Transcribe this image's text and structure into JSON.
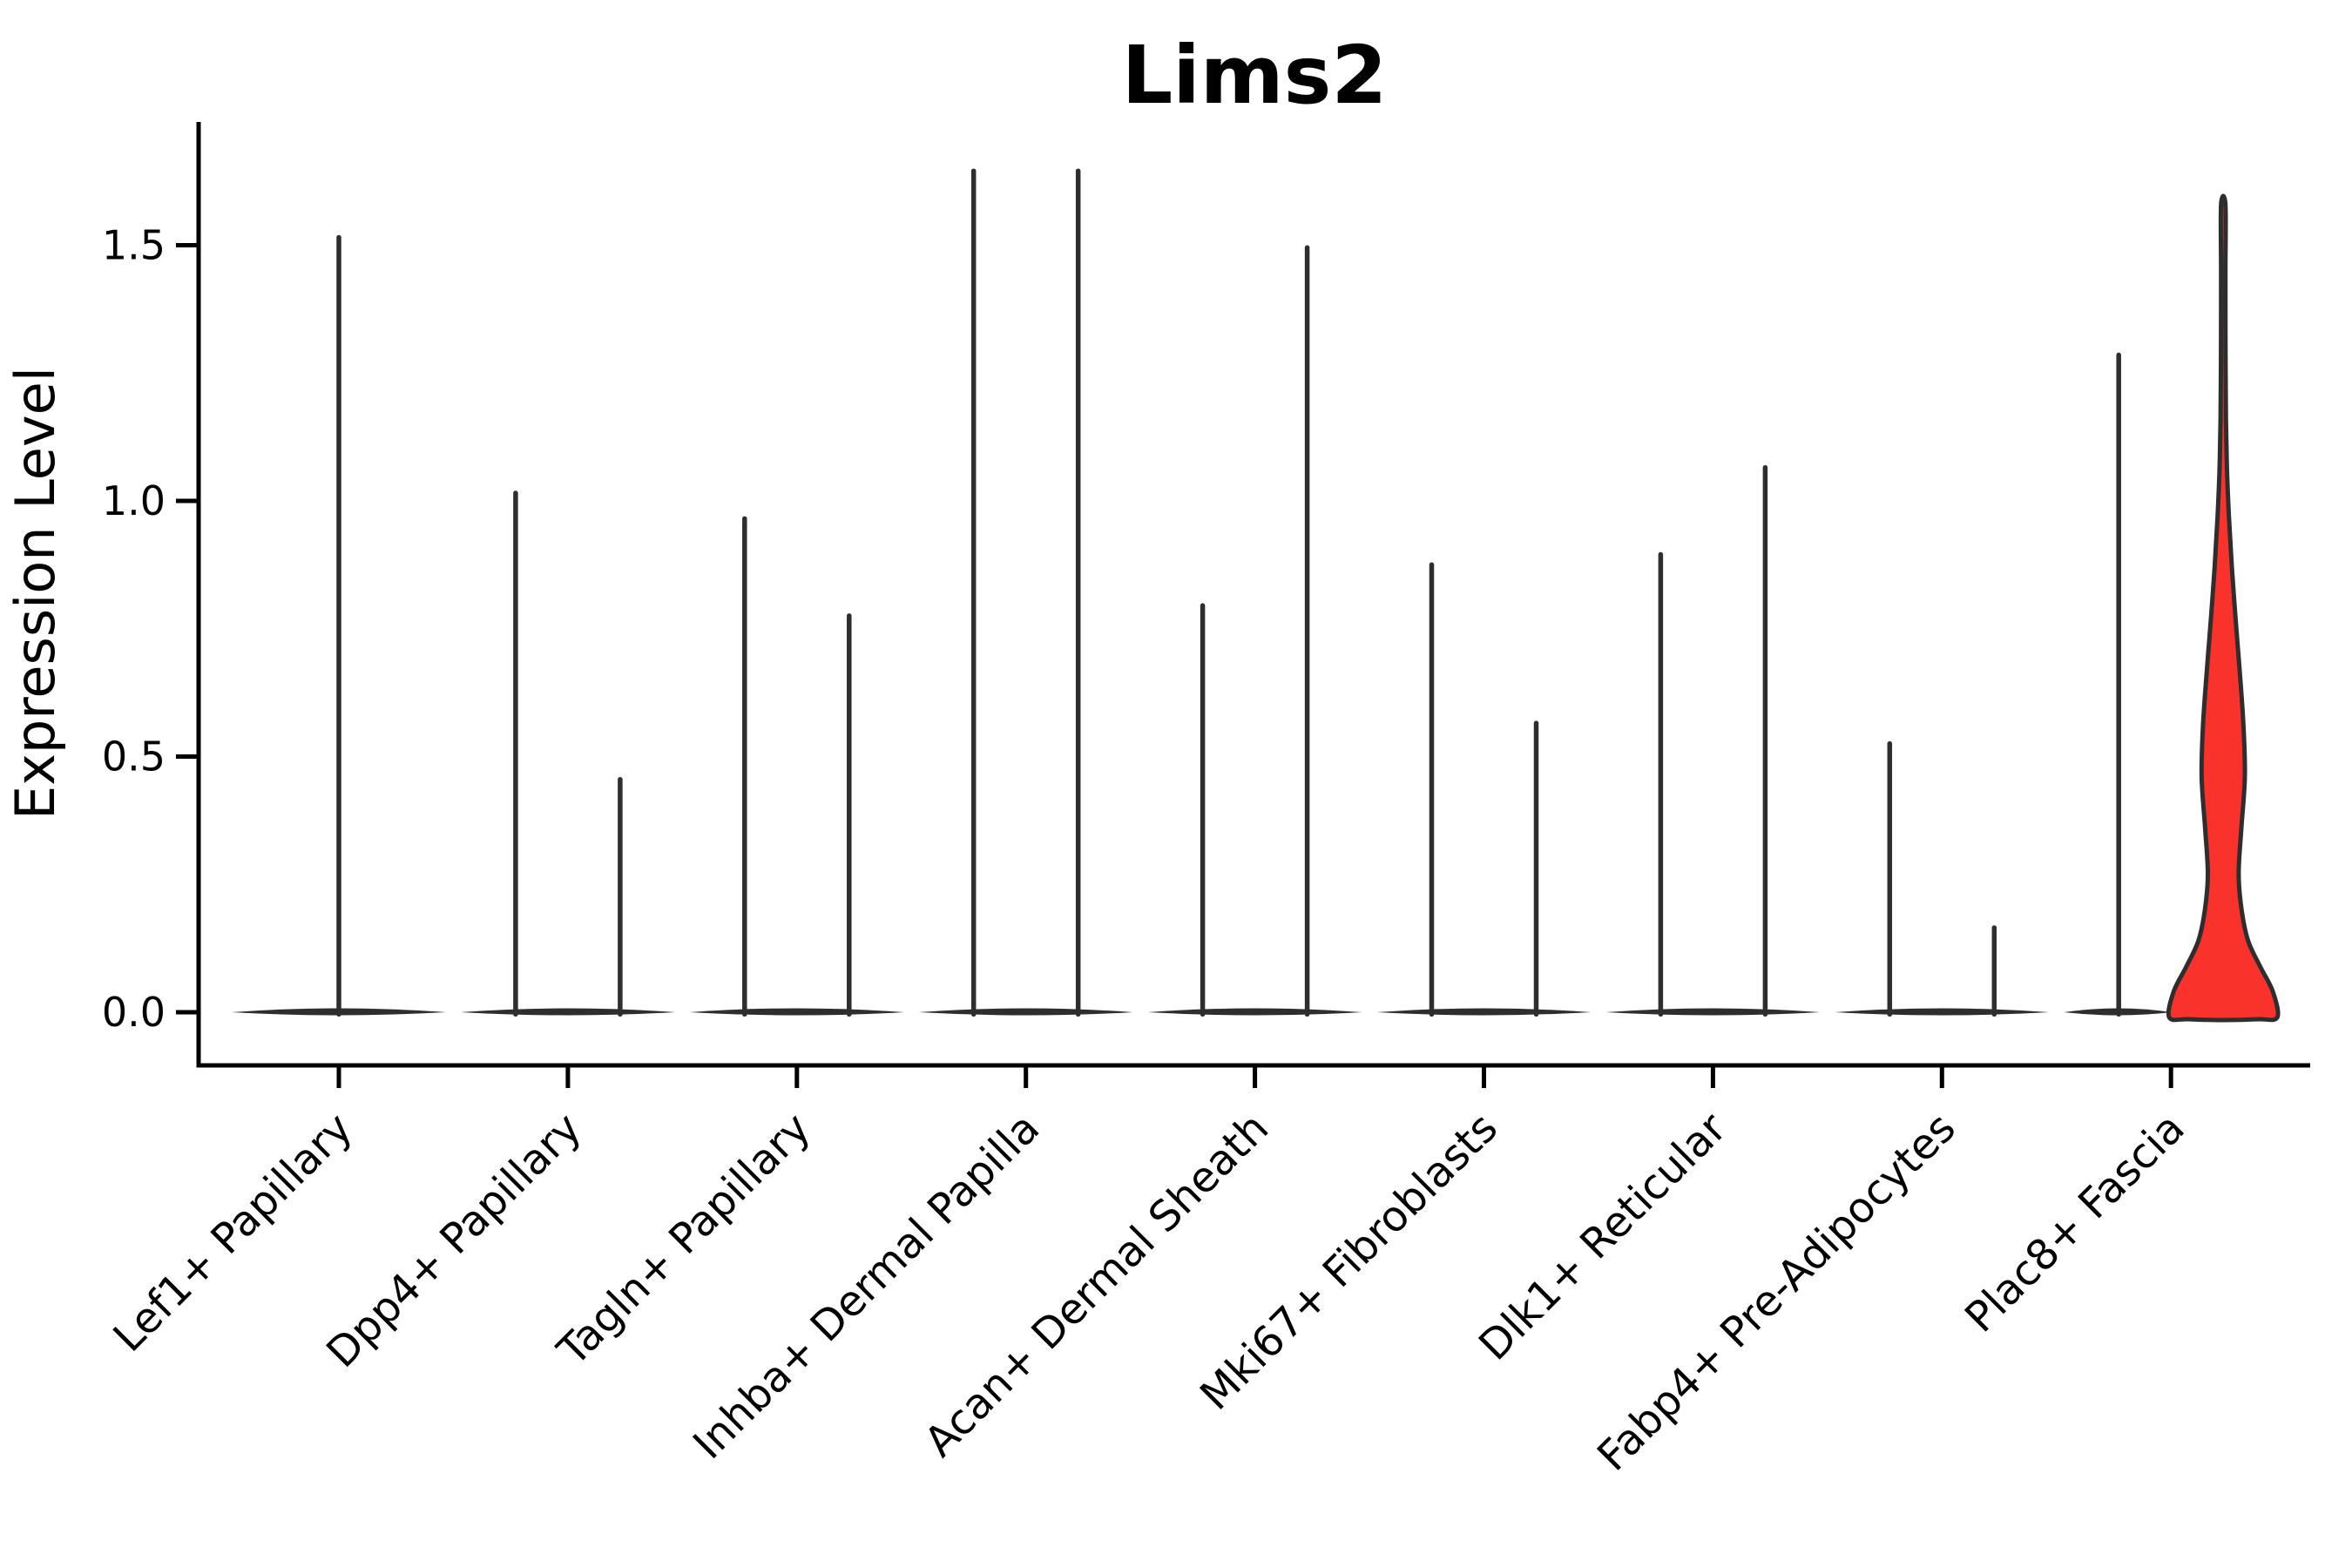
{
  "page": {
    "background": "#ffffff"
  },
  "chart_data": {
    "type": "violin",
    "title": "Lims2",
    "xlabel": "",
    "ylabel": "Expression Level",
    "yticks": [
      "0.0",
      "0.5",
      "1.0",
      "1.5"
    ],
    "ytick_values": [
      0,
      0.5,
      1.0,
      1.5
    ],
    "ylim": [
      -0.1,
      1.77
    ],
    "grid": false,
    "legend": null,
    "xtick_rotation_deg": 45,
    "colors": {
      "violin_line": "#2E2E2E",
      "highlight_fill": "#F9322B",
      "axis": "#000000",
      "text": "#000000"
    },
    "categories": [
      "Lef1+ Papillary",
      "Dpp4+ Papillary",
      "Tagln+ Papillary",
      "Inhba+ Dermal Papilla",
      "Acan+ Dermal Sheath",
      "Mki67+ Fibroblasts",
      "Dlk1+ Reticular",
      "Fabp4+ Pre-Adipocytes",
      "Plac8+ Fascia"
    ],
    "groups": [
      {
        "category": "Lef1+ Papillary",
        "violins": [
          {
            "pos": "center",
            "peak": 1.52,
            "shape": "collapsed"
          }
        ]
      },
      {
        "category": "Dpp4+ Papillary",
        "violins": [
          {
            "pos": "left",
            "peak": 1.02,
            "shape": "collapsed"
          },
          {
            "pos": "right",
            "peak": 0.46,
            "shape": "collapsed"
          }
        ]
      },
      {
        "category": "Tagln+ Papillary",
        "violins": [
          {
            "pos": "left",
            "peak": 0.97,
            "shape": "collapsed"
          },
          {
            "pos": "right",
            "peak": 0.78,
            "shape": "collapsed"
          }
        ]
      },
      {
        "category": "Inhba+ Dermal Papilla",
        "violins": [
          {
            "pos": "left",
            "peak": 1.65,
            "shape": "collapsed"
          },
          {
            "pos": "right",
            "peak": 1.65,
            "shape": "collapsed"
          }
        ]
      },
      {
        "category": "Acan+ Dermal Sheath",
        "violins": [
          {
            "pos": "left",
            "peak": 0.8,
            "shape": "collapsed"
          },
          {
            "pos": "right",
            "peak": 1.5,
            "shape": "collapsed"
          }
        ]
      },
      {
        "category": "Mki67+ Fibroblasts",
        "violins": [
          {
            "pos": "left",
            "peak": 0.88,
            "shape": "collapsed"
          },
          {
            "pos": "right",
            "peak": 0.57,
            "shape": "collapsed"
          }
        ]
      },
      {
        "category": "Dlk1+ Reticular",
        "violins": [
          {
            "pos": "left",
            "peak": 0.9,
            "shape": "collapsed"
          },
          {
            "pos": "right",
            "peak": 1.07,
            "shape": "collapsed"
          }
        ]
      },
      {
        "category": "Fabp4+ Pre-Adipocytes",
        "violins": [
          {
            "pos": "left",
            "peak": 0.53,
            "shape": "collapsed"
          },
          {
            "pos": "right",
            "peak": 0.17,
            "shape": "collapsed"
          }
        ]
      },
      {
        "category": "Plac8+ Fascia",
        "violins": [
          {
            "pos": "left",
            "peak": 1.29,
            "shape": "collapsed"
          },
          {
            "pos": "right",
            "peak": 1.58,
            "shape": "density",
            "fill": "#F9322B",
            "profile": [
              [
                0.0,
                1.0
              ],
              [
                0.04,
                0.92
              ],
              [
                0.09,
                0.68
              ],
              [
                0.14,
                0.46
              ],
              [
                0.2,
                0.34
              ],
              [
                0.27,
                0.285
              ],
              [
                0.36,
                0.335
              ],
              [
                0.46,
                0.4
              ],
              [
                0.56,
                0.375
              ],
              [
                0.66,
                0.31
              ],
              [
                0.76,
                0.235
              ],
              [
                0.87,
                0.16
              ],
              [
                0.97,
                0.105
              ],
              [
                1.06,
                0.07
              ],
              [
                1.16,
                0.05
              ],
              [
                1.3,
                0.042
              ],
              [
                1.45,
                0.04
              ],
              [
                1.58,
                0.04
              ]
            ]
          }
        ]
      }
    ]
  }
}
